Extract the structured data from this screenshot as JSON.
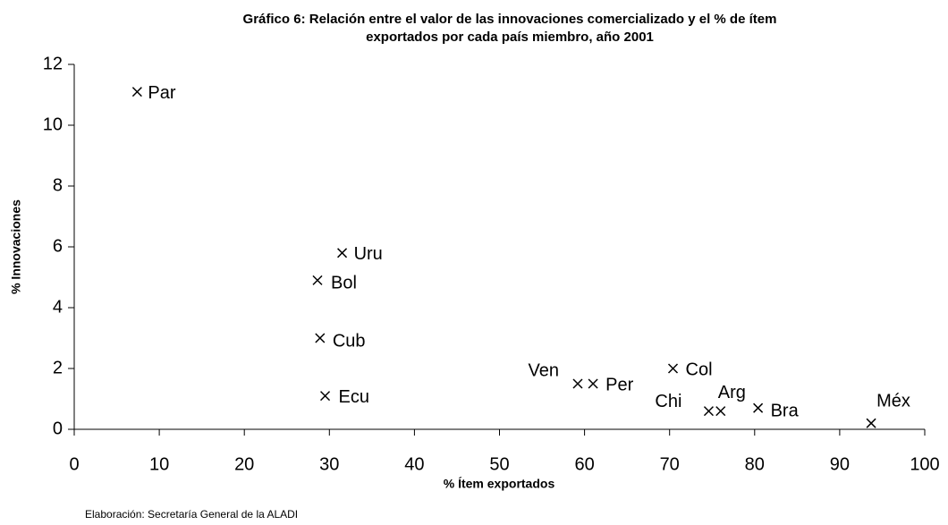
{
  "chart_data": {
    "type": "scatter",
    "title": [
      "Gráfico 6: Relación entre el valor de las innovaciones comercializado y el % de ítem",
      "exportados por cada país miembro, año 2001"
    ],
    "x_label": "% Ítem exportados",
    "y_label": "% Innovaciones",
    "labels": [
      "Par",
      "Uru",
      "Bol",
      "Cub",
      "Ecu",
      "Ven",
      "Per",
      "Col",
      "Chi",
      "Arg",
      "Bra",
      "Méx"
    ],
    "x": [
      7.4,
      31.5,
      28.6,
      28.9,
      29.5,
      59.2,
      61.0,
      70.4,
      74.6,
      76.0,
      80.4,
      93.7
    ],
    "values": [
      11.1,
      5.8,
      4.9,
      3.0,
      1.1,
      1.5,
      1.5,
      2.0,
      0.6,
      0.6,
      0.7,
      0.2
    ],
    "color": "#000000",
    "xlim": [
      0,
      100
    ],
    "xticks": [
      0,
      10,
      20,
      30,
      40,
      50,
      60,
      70,
      80,
      90,
      100
    ],
    "ylim": [
      0,
      12
    ],
    "yticks": [
      0,
      2,
      4,
      6,
      8,
      10,
      12
    ],
    "footnote": "Elaboración: Secretaría General de la ALADI"
  }
}
